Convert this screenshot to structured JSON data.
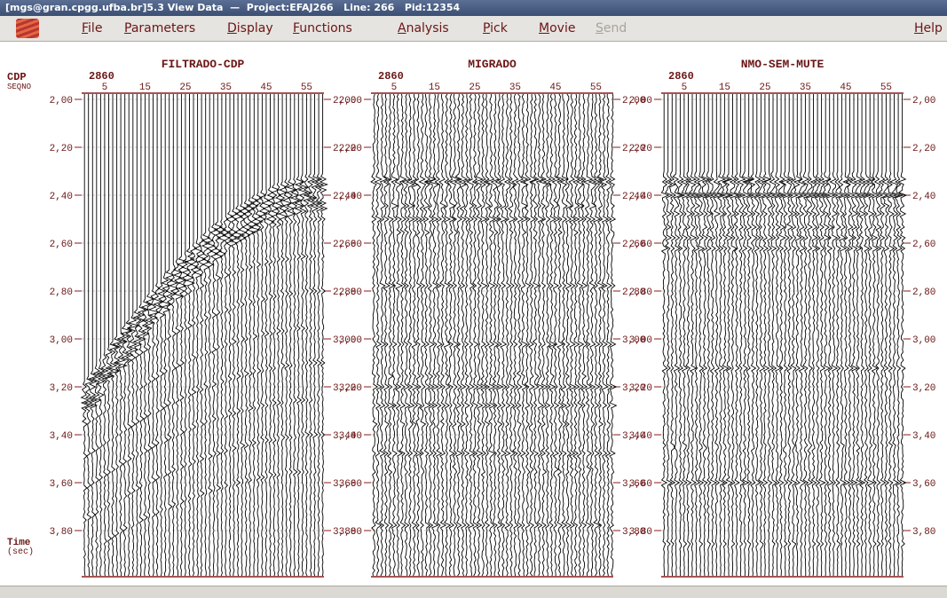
{
  "window": {
    "title": "[mgs@gran.cpgg.ufba.br]5.3 View Data  —  Project:EFAJ266   Line: 266   Pid:12354"
  },
  "menu": {
    "items": [
      {
        "label": "File",
        "enabled": true
      },
      {
        "label": "Parameters",
        "enabled": true
      },
      {
        "label": "Display",
        "enabled": true
      },
      {
        "label": "Functions",
        "enabled": true
      },
      {
        "label": "Analysis",
        "enabled": true
      },
      {
        "label": "Pick",
        "enabled": true
      },
      {
        "label": "Movie",
        "enabled": true
      },
      {
        "label": "Send",
        "enabled": false
      }
    ],
    "help": "Help"
  },
  "axis_labels": {
    "cdp": "CDP",
    "seqno": "SEQNO",
    "time": "Time",
    "unit": "(sec)"
  },
  "panels": [
    {
      "title": "FILTRADO-CDP",
      "cdp": "2860"
    },
    {
      "title": "MIGRADO",
      "cdp": "2860"
    },
    {
      "title": "NMO-SEM-MUTE",
      "cdp": "2860"
    }
  ],
  "xticks": [
    "5",
    "15",
    "25",
    "35",
    "45",
    "55"
  ],
  "yticks": [
    "2,00",
    "2,20",
    "2,40",
    "2,60",
    "2,80",
    "3,00",
    "3,20",
    "3,40",
    "3,60",
    "3,80"
  ]
}
